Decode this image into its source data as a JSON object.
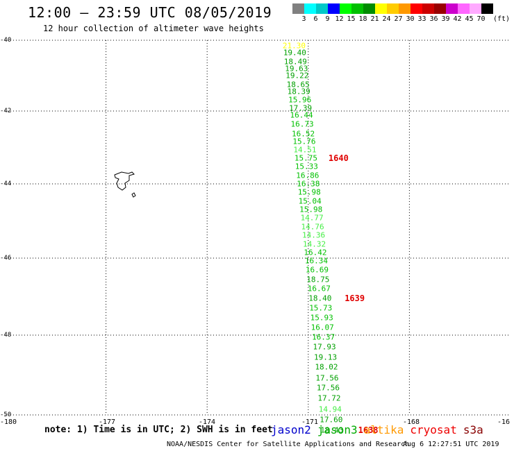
{
  "header": {
    "title": "12:00 – 23:59 UTC 08/05/2019",
    "subtitle": "12 hour collection of altimeter wave heights"
  },
  "legend": {
    "unit": "(ft)",
    "items": [
      {
        "color": "#808080",
        "label": "3"
      },
      {
        "color": "#00ffff",
        "label": "6"
      },
      {
        "color": "#00c8c8",
        "label": "9"
      },
      {
        "color": "#0000ff",
        "label": "12"
      },
      {
        "color": "#00ff00",
        "label": "15"
      },
      {
        "color": "#00c000",
        "label": "18"
      },
      {
        "color": "#008c00",
        "label": "21"
      },
      {
        "color": "#ffff00",
        "label": "24"
      },
      {
        "color": "#ffcc00",
        "label": "27"
      },
      {
        "color": "#ff9900",
        "label": "30"
      },
      {
        "color": "#ff0000",
        "label": "33"
      },
      {
        "color": "#cc0000",
        "label": "36"
      },
      {
        "color": "#990000",
        "label": "39"
      },
      {
        "color": "#cc00cc",
        "label": "42"
      },
      {
        "color": "#ff66ff",
        "label": "45"
      },
      {
        "color": "#ffaaff",
        "label": "70"
      },
      {
        "color": "#000000",
        "label": ""
      }
    ]
  },
  "map": {
    "lat_ticks": [
      "-40",
      "-42",
      "-44",
      "-46",
      "-48",
      "-50"
    ],
    "lon_ticks": [
      "-180",
      "-177",
      "-174",
      "-171",
      "-168",
      "-16"
    ],
    "observations": [
      {
        "lat": -40.15,
        "lon": -171.42,
        "v": "21.30",
        "c": "#ffff00"
      },
      {
        "lat": -40.35,
        "lon": -171.4,
        "v": "19.40",
        "c": "#00a000"
      },
      {
        "lat": -40.6,
        "lon": -171.38,
        "v": "18.49",
        "c": "#00a000"
      },
      {
        "lat": -40.8,
        "lon": -171.35,
        "v": "19.63",
        "c": "#00a000"
      },
      {
        "lat": -41.0,
        "lon": -171.33,
        "v": "19.22",
        "c": "#00a000"
      },
      {
        "lat": -41.25,
        "lon": -171.3,
        "v": "18.65",
        "c": "#00a000"
      },
      {
        "lat": -41.45,
        "lon": -171.28,
        "v": "18.39",
        "c": "#00a000"
      },
      {
        "lat": -41.68,
        "lon": -171.25,
        "v": "15.96",
        "c": "#00c000"
      },
      {
        "lat": -41.92,
        "lon": -171.23,
        "v": "17.39",
        "c": "#00a000"
      },
      {
        "lat": -42.12,
        "lon": -171.2,
        "v": "16.44",
        "c": "#00c000"
      },
      {
        "lat": -42.37,
        "lon": -171.18,
        "v": "16.73",
        "c": "#00c000"
      },
      {
        "lat": -42.62,
        "lon": -171.15,
        "v": "16.52",
        "c": "#00c000"
      },
      {
        "lat": -42.84,
        "lon": -171.12,
        "v": "15.76",
        "c": "#00c000"
      },
      {
        "lat": -43.07,
        "lon": -171.1,
        "v": "14.51",
        "c": "#44ee44"
      },
      {
        "lat": -43.3,
        "lon": -171.07,
        "v": "15.75",
        "c": "#00c000"
      },
      {
        "lat": -43.52,
        "lon": -171.05,
        "v": "15.33",
        "c": "#00c000"
      },
      {
        "lat": -43.78,
        "lon": -171.02,
        "v": "16.86",
        "c": "#00c000"
      },
      {
        "lat": -44.0,
        "lon": -171.0,
        "v": "16.38",
        "c": "#00c000"
      },
      {
        "lat": -44.23,
        "lon": -170.97,
        "v": "15.98",
        "c": "#00c000"
      },
      {
        "lat": -44.46,
        "lon": -170.95,
        "v": "15.04",
        "c": "#00c000"
      },
      {
        "lat": -44.7,
        "lon": -170.92,
        "v": "15.98",
        "c": "#00c000"
      },
      {
        "lat": -44.92,
        "lon": -170.89,
        "v": "14.77",
        "c": "#44ee44"
      },
      {
        "lat": -45.15,
        "lon": -170.87,
        "v": "14.76",
        "c": "#44ee44"
      },
      {
        "lat": -45.38,
        "lon": -170.84,
        "v": "14.36",
        "c": "#44ee44"
      },
      {
        "lat": -45.62,
        "lon": -170.82,
        "v": "14.32",
        "c": "#44ee44"
      },
      {
        "lat": -45.85,
        "lon": -170.79,
        "v": "16.42",
        "c": "#00c000"
      },
      {
        "lat": -46.07,
        "lon": -170.76,
        "v": "16.34",
        "c": "#00c000"
      },
      {
        "lat": -46.31,
        "lon": -170.74,
        "v": "16.69",
        "c": "#00c000"
      },
      {
        "lat": -46.55,
        "lon": -170.71,
        "v": "18.75",
        "c": "#00a000"
      },
      {
        "lat": -46.8,
        "lon": -170.68,
        "v": "16.67",
        "c": "#00c000"
      },
      {
        "lat": -47.05,
        "lon": -170.65,
        "v": "18.40",
        "c": "#00a000"
      },
      {
        "lat": -47.3,
        "lon": -170.63,
        "v": "15.73",
        "c": "#00c000"
      },
      {
        "lat": -47.55,
        "lon": -170.6,
        "v": "15.93",
        "c": "#00c000"
      },
      {
        "lat": -47.8,
        "lon": -170.58,
        "v": "16.07",
        "c": "#00c000"
      },
      {
        "lat": -48.05,
        "lon": -170.55,
        "v": "16.37",
        "c": "#00c000"
      },
      {
        "lat": -48.3,
        "lon": -170.52,
        "v": "17.93",
        "c": "#00a000"
      },
      {
        "lat": -48.55,
        "lon": -170.49,
        "v": "19.13",
        "c": "#00a000"
      },
      {
        "lat": -48.8,
        "lon": -170.46,
        "v": "18.02",
        "c": "#00a000"
      },
      {
        "lat": -49.07,
        "lon": -170.44,
        "v": "17.56",
        "c": "#00a000"
      },
      {
        "lat": -49.33,
        "lon": -170.41,
        "v": "17.56",
        "c": "#00a000"
      },
      {
        "lat": -49.59,
        "lon": -170.38,
        "v": "17.72",
        "c": "#00a000"
      },
      {
        "lat": -49.86,
        "lon": -170.35,
        "v": "14.94",
        "c": "#44ee44"
      },
      {
        "lat": -50.13,
        "lon": -170.32,
        "v": "17.60",
        "c": "#00a000"
      },
      {
        "lat": -50.39,
        "lon": -170.3,
        "v": "18.43",
        "c": "#00a000"
      }
    ],
    "times": [
      {
        "lat": -43.3,
        "lon": -170.4,
        "v": "1640"
      },
      {
        "lat": -47.05,
        "lon": -169.92,
        "v": "1639"
      },
      {
        "lat": -50.39,
        "lon": -169.52,
        "v": "1638"
      }
    ]
  },
  "footer": {
    "note": "note: 1) Time is in UTC; 2) SWH is in feet",
    "satellites": [
      {
        "name": "jason2",
        "color": "#0000cc"
      },
      {
        "name": "jason3",
        "color": "#00aa00"
      },
      {
        "name": "altika",
        "color": "#ff9900"
      },
      {
        "name": "cryosat",
        "color": "#ee0000"
      },
      {
        "name": "s3a",
        "color": "#880000"
      }
    ],
    "credit": "NOAA/NESDIS Center for Satellite Applications and Research",
    "timestamp": "Aug  6 12:27:51 UTC 2019"
  }
}
